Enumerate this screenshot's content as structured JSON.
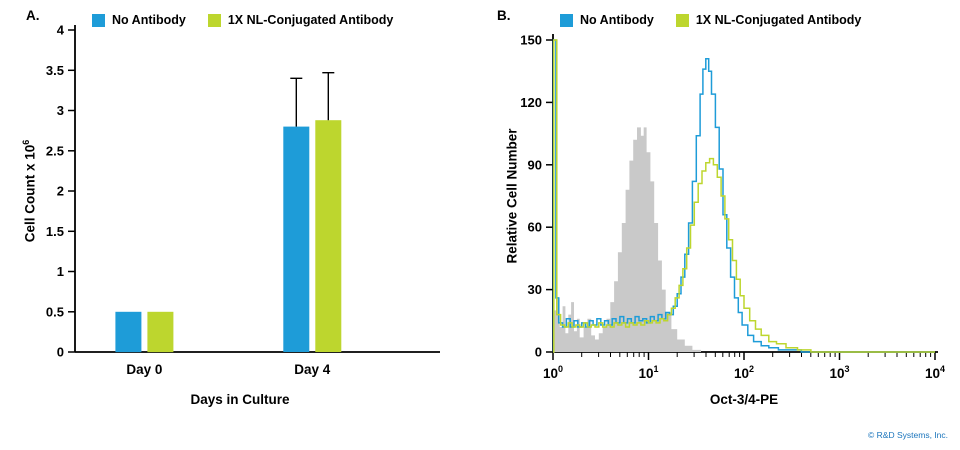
{
  "figure": {
    "panel_a_label": "A.",
    "panel_b_label": "B.",
    "copyright": "© R&D Systems, Inc."
  },
  "colors": {
    "blue": "#1E9CD8",
    "green": "#BDD62E",
    "gray_fill": "#C9C9C9",
    "axis": "#000000",
    "copyright_blue": "#1B75BC"
  },
  "chart_data": [
    {
      "type": "bar",
      "panel": "A",
      "categories": [
        "Day 0",
        "Day 4"
      ],
      "series": [
        {
          "name": "No Antibody",
          "color": "#1E9CD8",
          "values": [
            0.5,
            2.8
          ],
          "errors": [
            0,
            0.6
          ]
        },
        {
          "name": "1X NL-Conjugated Antibody",
          "color": "#BDD62E",
          "values": [
            0.5,
            2.88
          ],
          "errors": [
            0,
            0.59
          ]
        }
      ],
      "xlabel": "Days in Culture",
      "ylabel": {
        "text": "Cell Count x 10",
        "sup": "6"
      },
      "ylim": [
        0,
        4
      ],
      "yticks": [
        0,
        0.5,
        1,
        1.5,
        2,
        2.5,
        3,
        3.5,
        4
      ],
      "legend_position": "top",
      "grid": false
    },
    {
      "type": "line",
      "panel": "B",
      "subtype": "flow-cytometry-histogram",
      "xscale": "log",
      "xlabel": "Oct-3/4-PE",
      "ylabel": {
        "text": "Relative Cell Number",
        "sup": ""
      },
      "ylim": [
        0,
        150
      ],
      "yticks": [
        0,
        30,
        60,
        90,
        120,
        150
      ],
      "x_exponents": [
        0,
        1,
        2,
        3,
        4
      ],
      "legend_position": "top",
      "grid": false,
      "series": [
        {
          "name": "Unlabeled gray filled histogram",
          "style": "filled",
          "color": "#C9C9C9",
          "points": [
            [
              0,
              0
            ],
            [
              0.01,
              20
            ],
            [
              0.04,
              26
            ],
            [
              0.07,
              12
            ],
            [
              0.1,
              22
            ],
            [
              0.13,
              9
            ],
            [
              0.16,
              18
            ],
            [
              0.19,
              24
            ],
            [
              0.22,
              10
            ],
            [
              0.25,
              16
            ],
            [
              0.28,
              7
            ],
            [
              0.32,
              12
            ],
            [
              0.36,
              16
            ],
            [
              0.4,
              8
            ],
            [
              0.44,
              6
            ],
            [
              0.48,
              9
            ],
            [
              0.52,
              12
            ],
            [
              0.56,
              16
            ],
            [
              0.6,
              24
            ],
            [
              0.64,
              34
            ],
            [
              0.68,
              48
            ],
            [
              0.72,
              62
            ],
            [
              0.76,
              78
            ],
            [
              0.8,
              92
            ],
            [
              0.84,
              102
            ],
            [
              0.88,
              108
            ],
            [
              0.92,
              104
            ],
            [
              0.95,
              108
            ],
            [
              0.98,
              96
            ],
            [
              1.02,
              82
            ],
            [
              1.06,
              62
            ],
            [
              1.1,
              44
            ],
            [
              1.14,
              30
            ],
            [
              1.18,
              19
            ],
            [
              1.24,
              11
            ],
            [
              1.3,
              6
            ],
            [
              1.38,
              3
            ],
            [
              1.46,
              1
            ],
            [
              1.55,
              0
            ]
          ]
        },
        {
          "name": "No Antibody",
          "style": "step",
          "color": "#1E9CD8",
          "points": [
            [
              0,
              0
            ],
            [
              0.005,
              150
            ],
            [
              0.02,
              150
            ],
            [
              0.03,
              26
            ],
            [
              0.06,
              14
            ],
            [
              0.1,
              12
            ],
            [
              0.14,
              16
            ],
            [
              0.18,
              12
            ],
            [
              0.22,
              15
            ],
            [
              0.26,
              12
            ],
            [
              0.3,
              14
            ],
            [
              0.34,
              12
            ],
            [
              0.38,
              15
            ],
            [
              0.42,
              13
            ],
            [
              0.46,
              16
            ],
            [
              0.5,
              13
            ],
            [
              0.54,
              15
            ],
            [
              0.58,
              13
            ],
            [
              0.62,
              16
            ],
            [
              0.66,
              14
            ],
            [
              0.7,
              17
            ],
            [
              0.74,
              14
            ],
            [
              0.78,
              16
            ],
            [
              0.82,
              14
            ],
            [
              0.86,
              17
            ],
            [
              0.9,
              15
            ],
            [
              0.94,
              16
            ],
            [
              0.98,
              14
            ],
            [
              1.02,
              17
            ],
            [
              1.06,
              15
            ],
            [
              1.1,
              18
            ],
            [
              1.14,
              16
            ],
            [
              1.18,
              19
            ],
            [
              1.22,
              18
            ],
            [
              1.26,
              22
            ],
            [
              1.3,
              28
            ],
            [
              1.34,
              36
            ],
            [
              1.38,
              47
            ],
            [
              1.42,
              62
            ],
            [
              1.46,
              82
            ],
            [
              1.5,
              104
            ],
            [
              1.54,
              124
            ],
            [
              1.57,
              136
            ],
            [
              1.6,
              141
            ],
            [
              1.63,
              135
            ],
            [
              1.66,
              124
            ],
            [
              1.7,
              108
            ],
            [
              1.74,
              88
            ],
            [
              1.78,
              66
            ],
            [
              1.82,
              50
            ],
            [
              1.86,
              36
            ],
            [
              1.9,
              26
            ],
            [
              1.94,
              19
            ],
            [
              1.98,
              13
            ],
            [
              2.04,
              8
            ],
            [
              2.1,
              5
            ],
            [
              2.18,
              3
            ],
            [
              2.26,
              2
            ],
            [
              2.36,
              1
            ],
            [
              2.5,
              1
            ],
            [
              2.6,
              0
            ],
            [
              4.0,
              0
            ]
          ]
        },
        {
          "name": "1X NL-Conjugated Antibody",
          "style": "step",
          "color": "#BDD62E",
          "points": [
            [
              0,
              0
            ],
            [
              0.008,
              150
            ],
            [
              0.025,
              150
            ],
            [
              0.04,
              18
            ],
            [
              0.08,
              13
            ],
            [
              0.12,
              12
            ],
            [
              0.16,
              14
            ],
            [
              0.2,
              12
            ],
            [
              0.24,
              13
            ],
            [
              0.28,
              12
            ],
            [
              0.32,
              14
            ],
            [
              0.36,
              12
            ],
            [
              0.4,
              13
            ],
            [
              0.44,
              12
            ],
            [
              0.48,
              14
            ],
            [
              0.52,
              12
            ],
            [
              0.56,
              13
            ],
            [
              0.6,
              12
            ],
            [
              0.64,
              14
            ],
            [
              0.68,
              13
            ],
            [
              0.72,
              14
            ],
            [
              0.76,
              12
            ],
            [
              0.8,
              14
            ],
            [
              0.84,
              13
            ],
            [
              0.88,
              14
            ],
            [
              0.92,
              13
            ],
            [
              0.96,
              15
            ],
            [
              1.0,
              14
            ],
            [
              1.04,
              15
            ],
            [
              1.08,
              14
            ],
            [
              1.12,
              16
            ],
            [
              1.16,
              15
            ],
            [
              1.2,
              18
            ],
            [
              1.24,
              21
            ],
            [
              1.28,
              26
            ],
            [
              1.32,
              32
            ],
            [
              1.36,
              40
            ],
            [
              1.4,
              50
            ],
            [
              1.44,
              61
            ],
            [
              1.48,
              72
            ],
            [
              1.52,
              81
            ],
            [
              1.56,
              87
            ],
            [
              1.6,
              91
            ],
            [
              1.64,
              93
            ],
            [
              1.68,
              90
            ],
            [
              1.72,
              84
            ],
            [
              1.76,
              75
            ],
            [
              1.8,
              64
            ],
            [
              1.84,
              54
            ],
            [
              1.88,
              44
            ],
            [
              1.92,
              35
            ],
            [
              1.96,
              27
            ],
            [
              2.0,
              21
            ],
            [
              2.06,
              15
            ],
            [
              2.12,
              11
            ],
            [
              2.18,
              8
            ],
            [
              2.26,
              5
            ],
            [
              2.34,
              4
            ],
            [
              2.44,
              2
            ],
            [
              2.56,
              1
            ],
            [
              2.7,
              0
            ],
            [
              4.0,
              0
            ]
          ]
        }
      ]
    }
  ]
}
